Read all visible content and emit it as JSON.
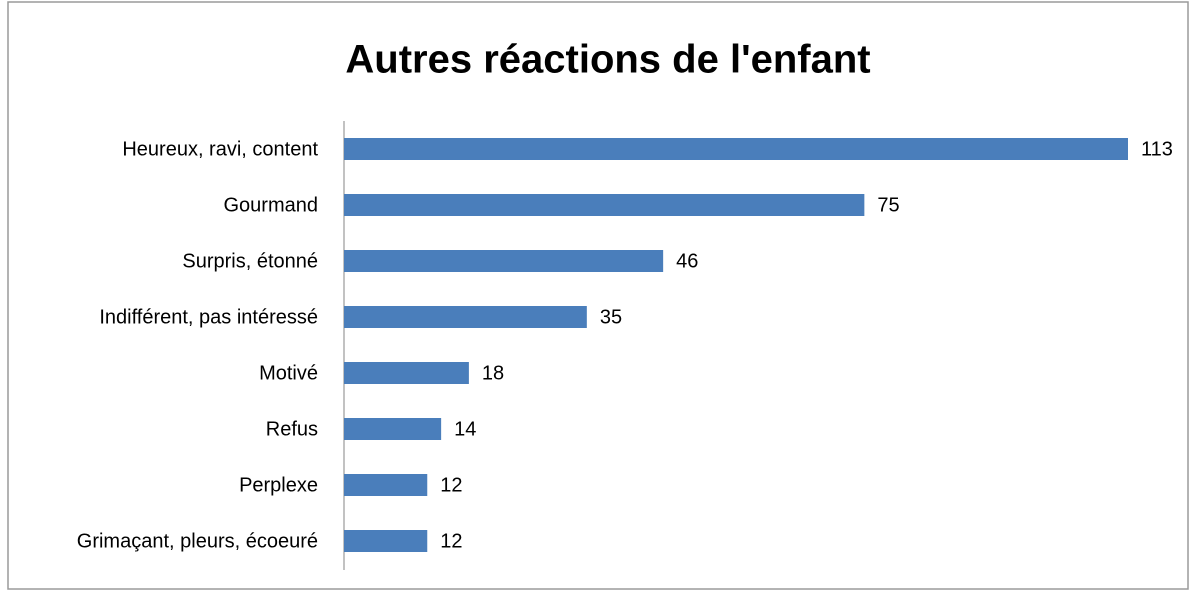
{
  "chart_data": {
    "type": "hbar",
    "title": "Autres réactions de l'enfant",
    "categories": [
      "Heureux, ravi, content",
      "Gourmand",
      "Surpris, étonné",
      "Indifférent, pas intéressé",
      "Motivé",
      "Refus",
      "Perplexe",
      "Grimaçant, pleurs, écoeuré"
    ],
    "values": [
      113,
      75,
      46,
      35,
      18,
      14,
      12,
      12
    ],
    "color": "#4a7ebb"
  }
}
